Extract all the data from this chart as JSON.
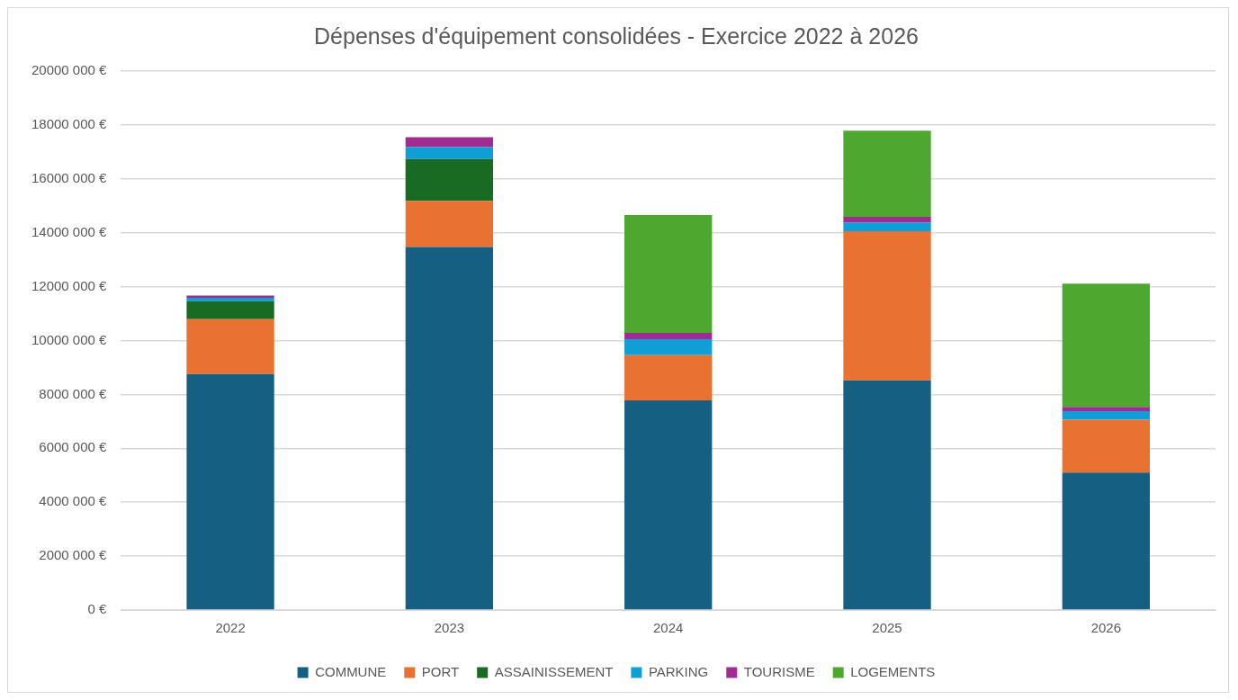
{
  "chart_data": {
    "type": "bar",
    "stacked": true,
    "title": "Dépenses d'équipement consolidées - Exercice 2022 à 2026",
    "categories": [
      "2022",
      "2023",
      "2024",
      "2025",
      "2026"
    ],
    "series": [
      {
        "name": "COMMUNE",
        "color": "#156082",
        "values": [
          8760000,
          13470000,
          7780000,
          8520000,
          5100000
        ]
      },
      {
        "name": "PORT",
        "color": "#e97132",
        "values": [
          2030000,
          1710000,
          1680000,
          5540000,
          1960000
        ]
      },
      {
        "name": "ASSAINISSEMENT",
        "color": "#196b24",
        "values": [
          670000,
          1560000,
          0,
          0,
          0
        ]
      },
      {
        "name": "PARKING",
        "color": "#0f9ed5",
        "values": [
          130000,
          440000,
          590000,
          320000,
          320000
        ]
      },
      {
        "name": "TOURISME",
        "color": "#a02b93",
        "values": [
          80000,
          370000,
          230000,
          210000,
          160000
        ]
      },
      {
        "name": "LOGEMENTS",
        "color": "#4ea72e",
        "values": [
          0,
          0,
          4380000,
          3200000,
          4570000
        ]
      }
    ],
    "ylim": [
      0,
      20000000
    ],
    "yticks": [
      {
        "value": 0,
        "label": "0 €"
      },
      {
        "value": 2000000,
        "label": "2000 000 €"
      },
      {
        "value": 4000000,
        "label": "4000 000 €"
      },
      {
        "value": 6000000,
        "label": "6000 000 €"
      },
      {
        "value": 8000000,
        "label": "8000 000 €"
      },
      {
        "value": 10000000,
        "label": "10000 000 €"
      },
      {
        "value": 12000000,
        "label": "12000 000 €"
      },
      {
        "value": 14000000,
        "label": "14000 000 €"
      },
      {
        "value": 16000000,
        "label": "16000 000 €"
      },
      {
        "value": 18000000,
        "label": "18000 000 €"
      },
      {
        "value": 20000000,
        "label": "20000 000 €"
      }
    ],
    "grid": "y",
    "legend": "bottom"
  }
}
